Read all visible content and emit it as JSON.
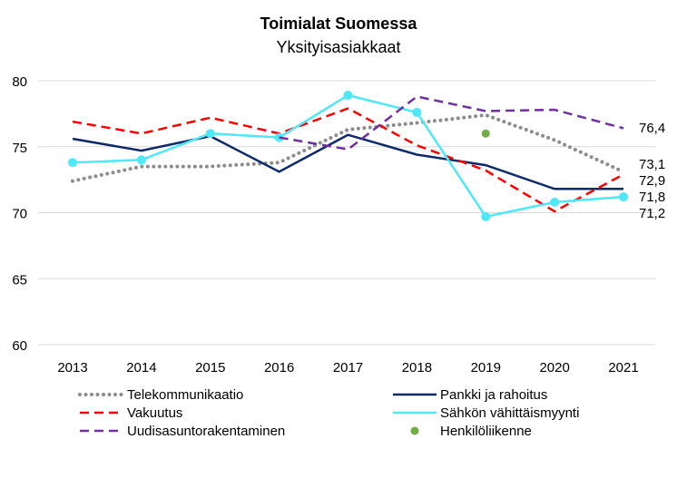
{
  "chart_data": {
    "type": "line",
    "title": "Toimialat Suomessa",
    "subtitle": "Yksityisasiakkaat",
    "xlabel": "",
    "ylabel": "",
    "ylim": [
      60,
      80
    ],
    "yticks": [
      "60",
      "65",
      "70",
      "75",
      "80"
    ],
    "grid": true,
    "legend_position": "bottom",
    "x": [
      "2013",
      "2014",
      "2015",
      "2016",
      "2017",
      "2018",
      "2019",
      "2020",
      "2021"
    ],
    "series": [
      {
        "name": "Telekommunikaatio",
        "color": "#8c8c8c",
        "style": "dotted",
        "values": [
          72.4,
          73.5,
          73.5,
          73.8,
          76.3,
          76.8,
          77.4,
          75.5,
          73.1
        ],
        "end_label": "73,1"
      },
      {
        "name": "Pankki ja rahoitus",
        "color": "#0d2a6b",
        "style": "solid",
        "values": [
          75.6,
          74.7,
          75.8,
          73.1,
          75.9,
          74.4,
          73.6,
          71.8,
          71.8
        ],
        "end_label": "71,8"
      },
      {
        "name": "Vakuutus",
        "color": "#ff0000",
        "style": "dashed",
        "values": [
          76.9,
          76.0,
          77.2,
          76.0,
          77.9,
          75.1,
          73.2,
          70.1,
          72.9
        ],
        "end_label": "72,9"
      },
      {
        "name": "Sähkön vähittäismyynti",
        "color": "#4ee8f8",
        "style": "solid-markers",
        "values": [
          73.8,
          74.0,
          76.0,
          75.7,
          78.9,
          77.6,
          69.7,
          70.8,
          71.2
        ],
        "end_label": "71,2"
      },
      {
        "name": "Uudisasuntorakentaminen",
        "color": "#7030a0",
        "style": "dashed",
        "values": [
          null,
          null,
          null,
          75.7,
          74.8,
          78.8,
          77.7,
          77.8,
          76.4
        ],
        "end_label": "76,4"
      },
      {
        "name": "Henkilöliikenne",
        "color": "#70ad47",
        "style": "point",
        "values": [
          null,
          null,
          null,
          null,
          null,
          null,
          76.0,
          null,
          null
        ]
      }
    ]
  }
}
